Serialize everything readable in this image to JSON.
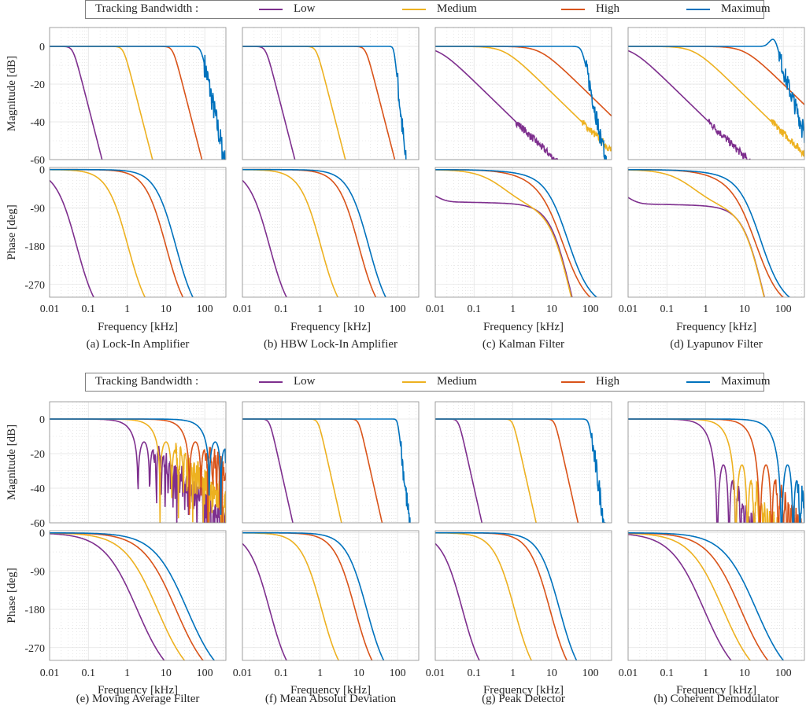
{
  "legend": {
    "title": "Tracking Bandwidth :",
    "entries": [
      {
        "label": "Low",
        "color": "#7E2F8E"
      },
      {
        "label": "Medium",
        "color": "#EDB120"
      },
      {
        "label": "High",
        "color": "#D95319"
      },
      {
        "label": "Maximum",
        "color": "#0072BD"
      }
    ]
  },
  "chart_data": {
    "type": "line",
    "description": "Bode diagrams (magnitude and phase) of eight demodulation methods at four tracking bandwidths",
    "xscale": "log",
    "xlim": [
      0.01,
      350
    ],
    "xticks": [
      0.01,
      0.1,
      1,
      10,
      100
    ],
    "xtick_labels": [
      "0.01",
      "0.1",
      "1",
      "10",
      "100"
    ],
    "xlabel": "Frequency [kHz]",
    "magnitude_axis": {
      "ylabel": "Magnitude [dB]",
      "ylim": [
        -60,
        10
      ],
      "yticks": [
        0,
        -20,
        -40,
        -60
      ],
      "ytick_labels": [
        "0",
        "-20",
        "-40",
        "-60"
      ]
    },
    "phase_axis": {
      "ylabel": "Phase [deg]",
      "ylim": [
        -300,
        5
      ],
      "yticks": [
        0,
        -90,
        -180,
        -270
      ],
      "ytick_labels": [
        "0",
        "-90",
        "-180",
        "-270"
      ]
    },
    "grid": true,
    "legend_placement": "top-center",
    "series_names": [
      "Low",
      "Medium",
      "High",
      "Maximum"
    ],
    "panels": [
      {
        "caption": "(a) Lock-In Amplifier",
        "model": "lowpass",
        "series": [
          {
            "name": "Low",
            "cutoff_khz": 0.04,
            "rolloff_db_per_decade": 80,
            "phase_cross_180_khz": 0.05
          },
          {
            "name": "Medium",
            "cutoff_khz": 0.8,
            "rolloff_db_per_decade": 80,
            "phase_cross_180_khz": 1.05
          },
          {
            "name": "High",
            "cutoff_khz": 15,
            "rolloff_db_per_decade": 80,
            "phase_cross_180_khz": 10
          },
          {
            "name": "Maximum",
            "cutoff_khz": 80,
            "rolloff_db_per_decade": 100,
            "phase_cross_180_khz": 18,
            "noisy_tail": true
          }
        ]
      },
      {
        "caption": "(b) HBW Lock-In Amplifier",
        "model": "lowpass",
        "series": [
          {
            "name": "Low",
            "cutoff_khz": 0.04,
            "rolloff_db_per_decade": 80,
            "phase_cross_180_khz": 0.05
          },
          {
            "name": "Medium",
            "cutoff_khz": 0.8,
            "rolloff_db_per_decade": 80,
            "phase_cross_180_khz": 1.05
          },
          {
            "name": "High",
            "cutoff_khz": 15,
            "rolloff_db_per_decade": 80,
            "phase_cross_180_khz": 10
          },
          {
            "name": "Maximum",
            "cutoff_khz": 80,
            "rolloff_db_per_decade": 200,
            "phase_cross_180_khz": 18,
            "noisy_tail": true
          }
        ]
      },
      {
        "caption": "(c) Kalman Filter",
        "model": "first-order",
        "series": [
          {
            "name": "Low",
            "cutoff_khz": 0.012,
            "rolloff_db_per_decade": 20,
            "phase_plateau_deg": -75
          },
          {
            "name": "Medium",
            "cutoff_khz": 0.6,
            "rolloff_db_per_decade": 20
          },
          {
            "name": "High",
            "cutoff_khz": 5,
            "rolloff_db_per_decade": 20
          },
          {
            "name": "Maximum",
            "cutoff_khz": 60,
            "rolloff_db_per_decade": 100,
            "noisy_tail": true
          }
        ]
      },
      {
        "caption": "(d) Lyapunov Filter",
        "model": "first-order",
        "series": [
          {
            "name": "Low",
            "cutoff_khz": 0.012,
            "rolloff_db_per_decade": 20,
            "phase_plateau_deg": -80
          },
          {
            "name": "Medium",
            "cutoff_khz": 0.5,
            "rolloff_db_per_decade": 20
          },
          {
            "name": "High",
            "cutoff_khz": 10,
            "rolloff_db_per_decade": 20
          },
          {
            "name": "Maximum",
            "cutoff_khz": 60,
            "rolloff_db_per_decade": 60,
            "resonance_peak_db": 6,
            "noisy_tail": true
          }
        ]
      },
      {
        "caption": "(e) Moving Average Filter",
        "model": "sinc",
        "series": [
          {
            "name": "Low",
            "first_null_khz": 1.9,
            "sidelobe_db": -13,
            "phase_cross_180_khz": 1.8
          },
          {
            "name": "Medium",
            "first_null_khz": 7,
            "sidelobe_db": -13,
            "phase_cross_180_khz": 6
          },
          {
            "name": "High",
            "first_null_khz": 40,
            "sidelobe_db": -13,
            "phase_cross_180_khz": 18
          },
          {
            "name": "Maximum",
            "first_null_khz": 130,
            "sidelobe_db": -13,
            "phase_cross_180_khz": 35
          }
        ]
      },
      {
        "caption": "(f) Mean Absolut Deviation",
        "model": "lowpass",
        "series": [
          {
            "name": "Low",
            "cutoff_khz": 0.05,
            "rolloff_db_per_decade": 100,
            "phase_cross_180_khz": 0.05
          },
          {
            "name": "Medium",
            "cutoff_khz": 0.9,
            "rolloff_db_per_decade": 100,
            "phase_cross_180_khz": 1.1
          },
          {
            "name": "High",
            "cutoff_khz": 10,
            "rolloff_db_per_decade": 100,
            "phase_cross_180_khz": 8
          },
          {
            "name": "Maximum",
            "cutoff_khz": 100,
            "rolloff_db_per_decade": 200,
            "phase_cross_180_khz": 16,
            "noisy_tail": true
          }
        ]
      },
      {
        "caption": "(g) Peak Detector",
        "model": "lowpass",
        "series": [
          {
            "name": "Low",
            "cutoff_khz": 0.04,
            "rolloff_db_per_decade": 100,
            "phase_cross_180_khz": 0.05
          },
          {
            "name": "Medium",
            "cutoff_khz": 1,
            "rolloff_db_per_decade": 100,
            "phase_cross_180_khz": 1.1
          },
          {
            "name": "High",
            "cutoff_khz": 12,
            "rolloff_db_per_decade": 100,
            "phase_cross_180_khz": 9
          },
          {
            "name": "Maximum",
            "cutoff_khz": 90,
            "rolloff_db_per_decade": 150,
            "phase_cross_180_khz": 16,
            "noisy_tail": true
          }
        ]
      },
      {
        "caption": "(h) Coherent Demodulator",
        "model": "sinc",
        "series": [
          {
            "name": "Low",
            "first_null_khz": 2,
            "sidelobe_db": -27,
            "phase_cross_180_khz": 0.9
          },
          {
            "name": "Medium",
            "first_null_khz": 6,
            "sidelobe_db": -27,
            "phase_cross_180_khz": 2.8
          },
          {
            "name": "High",
            "first_null_khz": 25,
            "sidelobe_db": -27,
            "phase_cross_180_khz": 8
          },
          {
            "name": "Maximum",
            "first_null_khz": 90,
            "sidelobe_db": -27,
            "phase_cross_180_khz": 20
          }
        ]
      }
    ]
  }
}
